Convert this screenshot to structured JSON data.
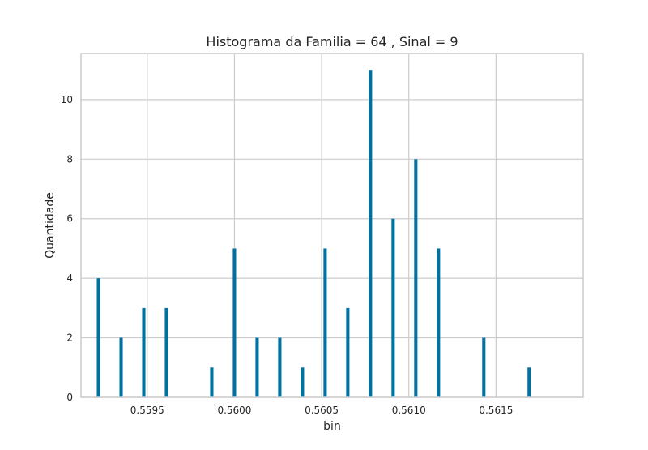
{
  "chart_data": {
    "type": "bar",
    "title": "Histograma da Familia = 64 , Sinal = 9",
    "xlabel": "bin",
    "ylabel": "Quantidade",
    "x": [
      0.55922,
      0.55935,
      0.55948,
      0.55961,
      0.55987,
      0.56,
      0.56013,
      0.56026,
      0.56039,
      0.56052,
      0.56065,
      0.56078,
      0.56091,
      0.56104,
      0.56117,
      0.56143,
      0.56169
    ],
    "values": [
      4,
      2,
      3,
      3,
      1,
      5,
      2,
      2,
      1,
      5,
      3,
      11,
      6,
      8,
      5,
      2,
      1
    ],
    "bar_width": 9.5e-06,
    "xlim": [
      0.55912,
      0.562
    ],
    "ylim": [
      0,
      11.55
    ],
    "xticks": [
      0.5595,
      0.56,
      0.5605,
      0.561,
      0.5615
    ],
    "xtick_labels": [
      "0.5595",
      "0.5600",
      "0.5605",
      "0.5610",
      "0.5615"
    ],
    "yticks": [
      0,
      2,
      4,
      6,
      8,
      10
    ],
    "ytick_labels": [
      "0",
      "2",
      "4",
      "6",
      "8",
      "10"
    ],
    "grid": true,
    "legend": "none",
    "colors": {
      "bar": "#0072a2",
      "grid": "#cccccc",
      "spine": "#cccccc",
      "text": "#262626",
      "background": "#ffffff"
    }
  }
}
